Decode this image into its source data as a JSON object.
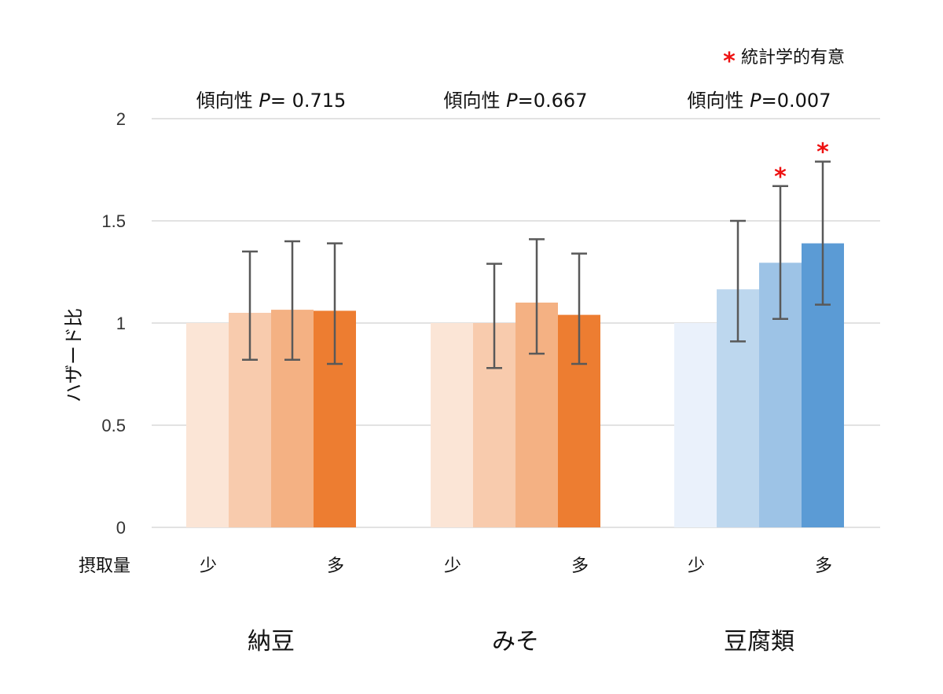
{
  "chart_data": {
    "type": "bar",
    "ylabel": "ハザード比",
    "ylim": [
      0,
      2
    ],
    "yticks": [
      "0",
      "0.5",
      "1",
      "1.5",
      "2"
    ],
    "ytick_values": [
      0,
      0.5,
      1,
      1.5,
      2
    ],
    "grid": true,
    "legend_note": {
      "marker": "*",
      "text": "統計学的有意"
    },
    "intake_label": "摂取量",
    "groups": [
      {
        "name": "納豆",
        "trend_label": "傾向性 ",
        "p_symbol": "P",
        "p_value": "= 0.715",
        "intake_low": "少",
        "intake_high": "多",
        "values": [
          1.0,
          1.05,
          1.065,
          1.06
        ],
        "error_low": [
          null,
          0.82,
          0.82,
          0.8
        ],
        "error_high": [
          null,
          1.35,
          1.4,
          1.39
        ],
        "significant": [
          false,
          false,
          false,
          false
        ],
        "colors": [
          "#fbe5d6",
          "#f8cbad",
          "#f4b183",
          "#ed7d31"
        ]
      },
      {
        "name": "みそ",
        "trend_label": "傾向性 ",
        "p_symbol": "P",
        "p_value": "=0.667",
        "intake_low": "少",
        "intake_high": "多",
        "values": [
          1.0,
          1.0,
          1.1,
          1.04
        ],
        "error_low": [
          null,
          0.78,
          0.85,
          0.8
        ],
        "error_high": [
          null,
          1.29,
          1.41,
          1.34
        ],
        "significant": [
          false,
          false,
          false,
          false
        ],
        "colors": [
          "#fbe5d6",
          "#f8cbad",
          "#f4b183",
          "#ed7d31"
        ]
      },
      {
        "name": "豆腐類",
        "trend_label": "傾向性 ",
        "p_symbol": "P",
        "p_value": "=0.007",
        "intake_low": "少",
        "intake_high": "多",
        "values": [
          1.0,
          1.165,
          1.295,
          1.39
        ],
        "error_low": [
          null,
          0.91,
          1.02,
          1.09
        ],
        "error_high": [
          null,
          1.5,
          1.67,
          1.79
        ],
        "significant": [
          false,
          false,
          true,
          true
        ],
        "colors": [
          "#eaf1fb",
          "#bdd7ee",
          "#9dc3e6",
          "#5b9bd5"
        ]
      }
    ],
    "colors": {
      "grid": "#d9d9d9",
      "error_bar": "#595959",
      "star": "#ee1111"
    }
  }
}
